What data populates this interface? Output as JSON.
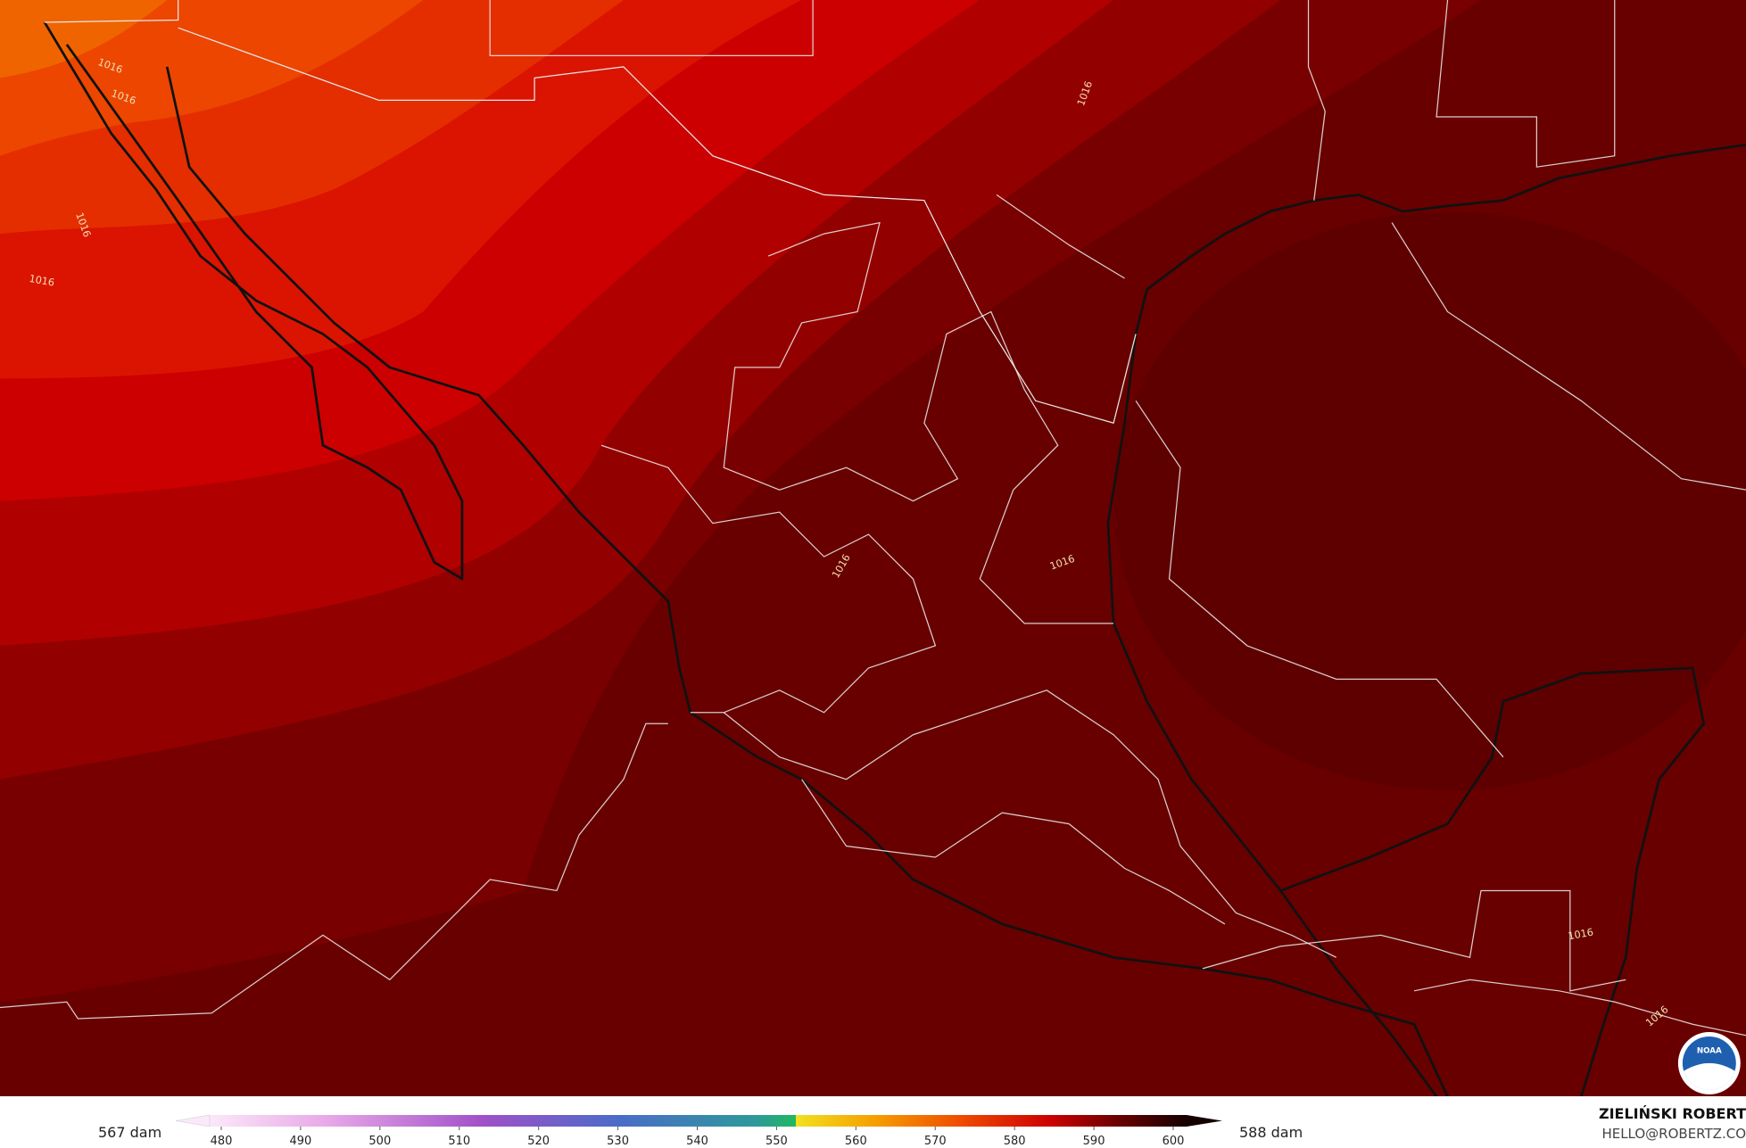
{
  "map": {
    "contour_labels": [
      "1016",
      "1016",
      "1016",
      "1016",
      "1016",
      "1016",
      "1016",
      "1016",
      "1016"
    ],
    "logo": "NOAA"
  },
  "colorbar": {
    "min_label": "567 dam",
    "max_label": "588 dam",
    "ticks": [
      480,
      490,
      500,
      510,
      520,
      530,
      540,
      550,
      560,
      570,
      580,
      590,
      600
    ]
  },
  "credits": {
    "name": "ZIELIŃSKI ROBERT",
    "email": "HELLO@ROBERTZ.CO"
  }
}
